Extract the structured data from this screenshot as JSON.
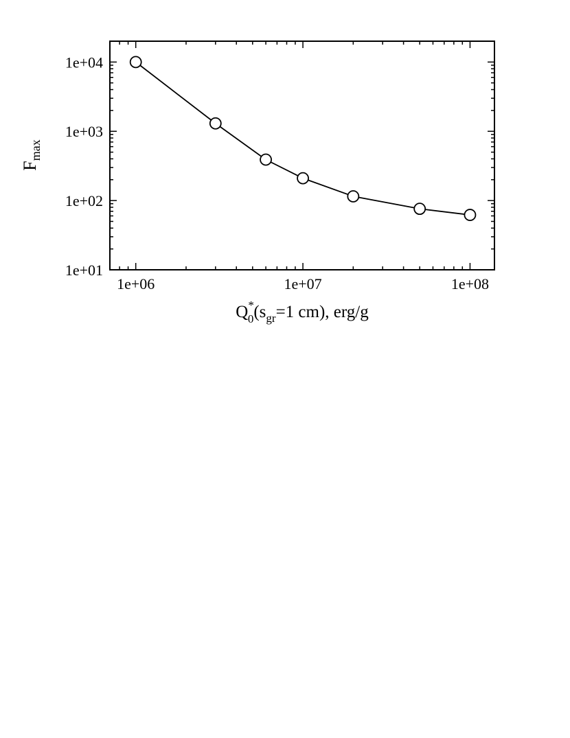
{
  "chart_data": {
    "type": "line",
    "ylabel": [
      "F",
      "max"
    ],
    "xlabel": [
      "Q",
      "*",
      "0",
      "(s",
      "gr",
      "=1 cm), erg/g"
    ],
    "x": [
      1000000,
      3000000,
      6000000,
      10000000,
      20000000,
      50000000,
      100000000
    ],
    "series": [
      {
        "color": "#000000",
        "marker": "circle",
        "values": [
          10000,
          1300,
          390,
          210,
          115,
          76,
          62
        ]
      }
    ],
    "xscale": "log",
    "yscale": "log",
    "xlim": [
      700000,
      140000000
    ],
    "ylim": [
      10,
      20000
    ],
    "xticks": [
      {
        "value": 1000000,
        "label": "1e+06"
      },
      {
        "value": 10000000,
        "label": "1e+07"
      },
      {
        "value": 100000000,
        "label": "1e+08"
      }
    ],
    "yticks": [
      {
        "value": 10,
        "label": "1e+01"
      },
      {
        "value": 100,
        "label": "1e+02"
      },
      {
        "value": 1000,
        "label": "1e+03"
      },
      {
        "value": 10000,
        "label": "1e+04"
      }
    ],
    "xminorticks": [
      800000,
      900000,
      2000000,
      3000000,
      4000000,
      5000000,
      6000000,
      7000000,
      8000000,
      9000000,
      20000000,
      30000000,
      40000000,
      50000000,
      60000000,
      70000000,
      80000000,
      90000000
    ],
    "yminorticks": [
      20,
      30,
      40,
      50,
      60,
      70,
      80,
      90,
      200,
      300,
      400,
      500,
      600,
      700,
      800,
      900,
      2000,
      3000,
      4000,
      5000,
      6000,
      7000,
      8000,
      9000
    ],
    "grid": false
  }
}
